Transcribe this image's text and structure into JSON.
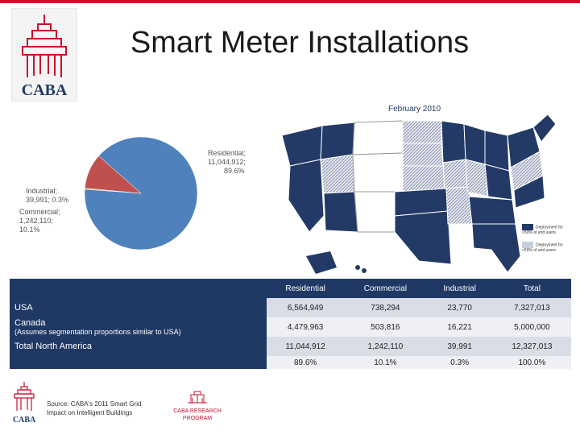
{
  "slide": {
    "title": "Smart Meter Installations",
    "source_line1": "Source: CABA's 2011 Smart Grid",
    "source_line2": "Impact on Intelligent Buildings"
  },
  "logo": {
    "text": "CABA"
  },
  "research_logo": {
    "line1": "CABA RESEARCH",
    "line2": "PROGRAM"
  },
  "colors": {
    "accent_red": "#c8102e",
    "navy": "#1f3864",
    "pie_blue": "#4f81bd",
    "pie_red": "#c0504d",
    "pie_green": "#9bbb59"
  },
  "map": {
    "title": "February 2010",
    "legend_1": "Deployment for >50% of end users",
    "legend_2": "Deployment for <50% of end users"
  },
  "chart_data": {
    "type": "pie",
    "slices": [
      {
        "label": "Residential; 11,044,912; 89.6%",
        "value": 11044912,
        "percent": 89.6,
        "color": "#4f81bd"
      },
      {
        "label": "Commercial; 1,242,110; 10.1%",
        "value": 1242110,
        "percent": 10.1,
        "color": "#c0504d"
      },
      {
        "label": "Industrial; 39,991; 0.3%",
        "value": 39991,
        "percent": 0.3,
        "color": "#9bbb59"
      }
    ]
  },
  "pie_labels": {
    "res_1": "Residential;",
    "res_2": "11,044,912;",
    "res_3": "89.6%",
    "ind_1": "Industrial;",
    "ind_2": "39,991; 0.3%",
    "com_1": "Commercial;",
    "com_2": "1,242,110;",
    "com_3": "10.1%"
  },
  "table": {
    "headers": [
      "Residential",
      "Commercial",
      "Industrial",
      "Total"
    ],
    "rows": [
      {
        "label": "USA",
        "sub": "",
        "values": [
          "6,564,949",
          "738,294",
          "23,770",
          "7,327,013"
        ]
      },
      {
        "label": "Canada",
        "sub": "(Assumes segmentation proportions similar to USA)",
        "values": [
          "4,479,963",
          "503,816",
          "16,221",
          "5,000,000"
        ]
      },
      {
        "label": "Total North America",
        "sub": "",
        "values": [
          "11,044,912",
          "1,242,110",
          "39,991",
          "12,327,013"
        ]
      },
      {
        "label": "",
        "sub": "",
        "values": [
          "89.6%",
          "10.1%",
          "0.3%",
          "100.0%"
        ]
      }
    ]
  }
}
